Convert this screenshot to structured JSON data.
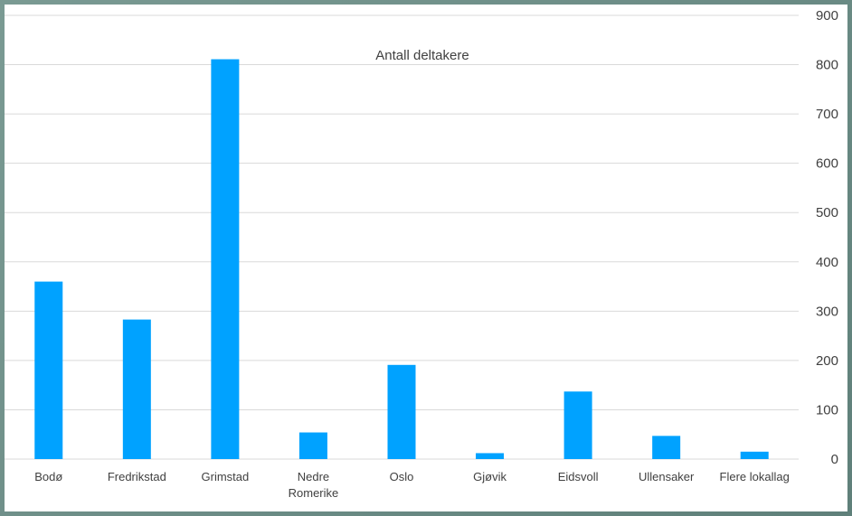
{
  "chart_data": {
    "type": "bar",
    "title": "Antall deltakere",
    "categories": [
      "Bodø",
      "Fredrikstad",
      "Grimstad",
      "Nedre Romerike",
      "Oslo",
      "Gjøvik",
      "Eidsvoll",
      "Ullensaker",
      "Flere lokallag"
    ],
    "category_lines": [
      [
        "Bodø"
      ],
      [
        "Fredrikstad"
      ],
      [
        "Grimstad"
      ],
      [
        "Nedre",
        "Romerike"
      ],
      [
        "Oslo"
      ],
      [
        "Gjøvik"
      ],
      [
        "Eidsvoll"
      ],
      [
        "Ullensaker"
      ],
      [
        "Flere lokallag"
      ]
    ],
    "values": [
      360,
      283,
      811,
      54,
      191,
      12,
      137,
      47,
      15
    ],
    "ylim": [
      0,
      900
    ],
    "yticks": [
      0,
      100,
      200,
      300,
      400,
      500,
      600,
      700,
      800,
      900
    ],
    "y_axis_side": "right",
    "grid": true,
    "legend": "none",
    "colors": {
      "bar": "#00a2ff",
      "grid": "#d9d9d9",
      "text": "#404040",
      "tick": "#404040"
    }
  }
}
